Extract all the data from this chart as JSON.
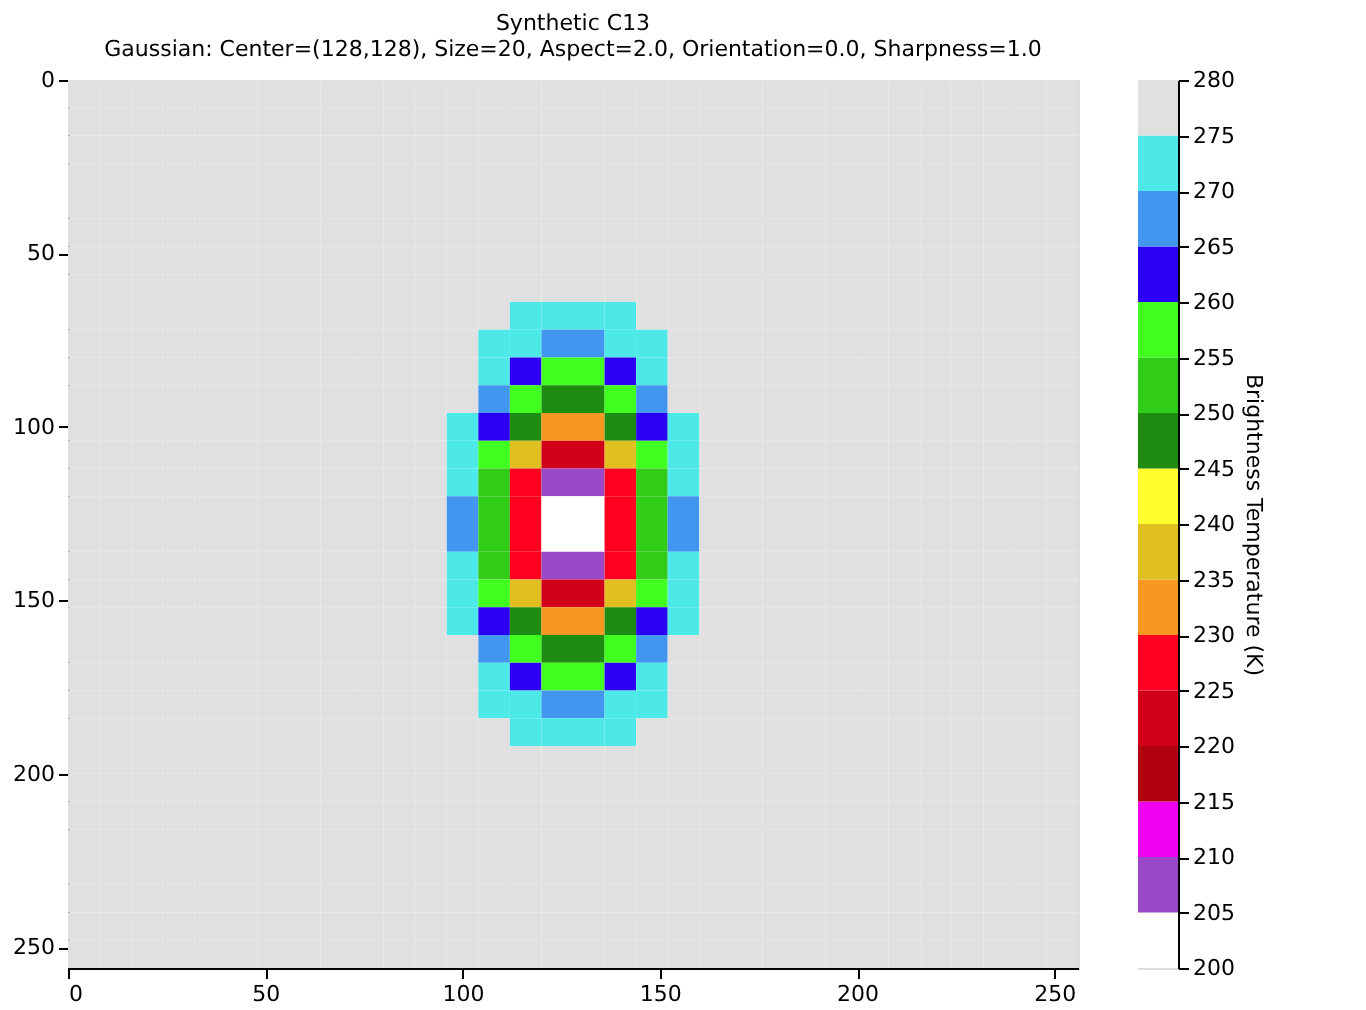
{
  "chart_data": {
    "type": "heatmap",
    "title": "Synthetic C13",
    "subtitle": "Gaussian: Center=(128,128), Size=20, Aspect=2.0, Orientation=0.0, Sharpness=1.0",
    "clabel": "Brightness Temperature (K)",
    "xlim": [
      0,
      256
    ],
    "ylim": [
      256,
      0
    ],
    "xticks": [
      0,
      50,
      100,
      150,
      200,
      250
    ],
    "yticks": [
      0,
      50,
      100,
      150,
      200,
      250
    ],
    "clim": [
      200,
      280
    ],
    "cticks": [
      200,
      205,
      210,
      215,
      220,
      225,
      230,
      235,
      240,
      245,
      250,
      255,
      260,
      265,
      270,
      275,
      280
    ],
    "colors": [
      "#ffffff",
      "#9848c8",
      "#f000f0",
      "#b00010",
      "#d00018",
      "#ff0020",
      "#f89820",
      "#e0c020",
      "#ffff30",
      "#1e8c10",
      "#30cc18",
      "#40ff20",
      "#2b00f5",
      "#4296f0",
      "#4de8e8",
      "#e0e0e0"
    ],
    "cells": [
      [
        278,
        278,
        278,
        278,
        278,
        278,
        278,
        278,
        278,
        278,
        278,
        278,
        278,
        278,
        278,
        278,
        278,
        278,
        278,
        278,
        278,
        278,
        278,
        278,
        278,
        278,
        278,
        278,
        278,
        278,
        278,
        278
      ],
      [
        278,
        278,
        278,
        278,
        278,
        278,
        278,
        278,
        278,
        278,
        278,
        278,
        278,
        278,
        278,
        278,
        278,
        278,
        278,
        278,
        278,
        278,
        278,
        278,
        278,
        278,
        278,
        278,
        278,
        278,
        278,
        278
      ],
      [
        278,
        278,
        278,
        278,
        278,
        278,
        278,
        278,
        278,
        278,
        278,
        278,
        278,
        278,
        278,
        278,
        278,
        278,
        278,
        278,
        278,
        278,
        278,
        278,
        278,
        278,
        278,
        278,
        278,
        278,
        278,
        278
      ],
      [
        278,
        278,
        278,
        278,
        278,
        278,
        278,
        278,
        278,
        278,
        278,
        278,
        278,
        278,
        278,
        278,
        278,
        278,
        278,
        278,
        278,
        278,
        278,
        278,
        278,
        278,
        278,
        278,
        278,
        278,
        278,
        278
      ],
      [
        278,
        278,
        278,
        278,
        278,
        278,
        278,
        278,
        278,
        278,
        278,
        278,
        278,
        278,
        278,
        278,
        278,
        278,
        278,
        278,
        278,
        278,
        278,
        278,
        278,
        278,
        278,
        278,
        278,
        278,
        278,
        278
      ],
      [
        278,
        278,
        278,
        278,
        278,
        278,
        278,
        278,
        278,
        278,
        278,
        278,
        278,
        278,
        278,
        278,
        278,
        278,
        278,
        278,
        278,
        278,
        278,
        278,
        278,
        278,
        278,
        278,
        278,
        278,
        278,
        278
      ],
      [
        278,
        278,
        278,
        278,
        278,
        278,
        278,
        278,
        278,
        278,
        278,
        278,
        278,
        278,
        278,
        278,
        278,
        278,
        278,
        278,
        278,
        278,
        278,
        278,
        278,
        278,
        278,
        278,
        278,
        278,
        278,
        278
      ],
      [
        278,
        278,
        278,
        278,
        278,
        278,
        278,
        278,
        278,
        278,
        278,
        278,
        278,
        278,
        278,
        278,
        278,
        278,
        278,
        278,
        278,
        278,
        278,
        278,
        278,
        278,
        278,
        278,
        278,
        278,
        278,
        278
      ],
      [
        278,
        278,
        278,
        278,
        278,
        278,
        278,
        278,
        278,
        278,
        278,
        278,
        278,
        278,
        273,
        273,
        273,
        273,
        278,
        278,
        278,
        278,
        278,
        278,
        278,
        278,
        278,
        278,
        278,
        278,
        278,
        278
      ],
      [
        278,
        278,
        278,
        278,
        278,
        278,
        278,
        278,
        278,
        278,
        278,
        278,
        278,
        273,
        273,
        268,
        268,
        273,
        273,
        278,
        278,
        278,
        278,
        278,
        278,
        278,
        278,
        278,
        278,
        278,
        278,
        278
      ],
      [
        278,
        278,
        278,
        278,
        278,
        278,
        278,
        278,
        278,
        278,
        278,
        278,
        278,
        273,
        263,
        258,
        258,
        263,
        273,
        278,
        278,
        278,
        278,
        278,
        278,
        278,
        278,
        278,
        278,
        278,
        278,
        278
      ],
      [
        278,
        278,
        278,
        278,
        278,
        278,
        278,
        278,
        278,
        278,
        278,
        278,
        278,
        268,
        258,
        248,
        248,
        258,
        268,
        278,
        278,
        278,
        278,
        278,
        278,
        278,
        278,
        278,
        278,
        278,
        278,
        278
      ],
      [
        278,
        278,
        278,
        278,
        278,
        278,
        278,
        278,
        278,
        278,
        278,
        278,
        273,
        263,
        248,
        233,
        233,
        248,
        263,
        273,
        278,
        278,
        278,
        278,
        278,
        278,
        278,
        278,
        278,
        278,
        278,
        278
      ],
      [
        278,
        278,
        278,
        278,
        278,
        278,
        278,
        278,
        278,
        278,
        278,
        278,
        273,
        258,
        238,
        223,
        223,
        238,
        258,
        273,
        278,
        278,
        278,
        278,
        278,
        278,
        278,
        278,
        278,
        278,
        278,
        278
      ],
      [
        278,
        278,
        278,
        278,
        278,
        278,
        278,
        278,
        278,
        278,
        278,
        278,
        273,
        253,
        228,
        208,
        208,
        228,
        253,
        273,
        278,
        278,
        278,
        278,
        278,
        278,
        278,
        278,
        278,
        278,
        278,
        278
      ],
      [
        278,
        278,
        278,
        278,
        278,
        278,
        278,
        278,
        278,
        278,
        278,
        278,
        268,
        253,
        228,
        203,
        203,
        228,
        253,
        268,
        278,
        278,
        278,
        278,
        278,
        278,
        278,
        278,
        278,
        278,
        278,
        278
      ],
      [
        278,
        278,
        278,
        278,
        278,
        278,
        278,
        278,
        278,
        278,
        278,
        278,
        268,
        253,
        228,
        203,
        203,
        228,
        253,
        268,
        278,
        278,
        278,
        278,
        278,
        278,
        278,
        278,
        278,
        278,
        278,
        278
      ],
      [
        278,
        278,
        278,
        278,
        278,
        278,
        278,
        278,
        278,
        278,
        278,
        278,
        273,
        253,
        228,
        208,
        208,
        228,
        253,
        273,
        278,
        278,
        278,
        278,
        278,
        278,
        278,
        278,
        278,
        278,
        278,
        278
      ],
      [
        278,
        278,
        278,
        278,
        278,
        278,
        278,
        278,
        278,
        278,
        278,
        278,
        273,
        258,
        238,
        223,
        223,
        238,
        258,
        273,
        278,
        278,
        278,
        278,
        278,
        278,
        278,
        278,
        278,
        278,
        278,
        278
      ],
      [
        278,
        278,
        278,
        278,
        278,
        278,
        278,
        278,
        278,
        278,
        278,
        278,
        273,
        263,
        248,
        233,
        233,
        248,
        263,
        273,
        278,
        278,
        278,
        278,
        278,
        278,
        278,
        278,
        278,
        278,
        278,
        278
      ],
      [
        278,
        278,
        278,
        278,
        278,
        278,
        278,
        278,
        278,
        278,
        278,
        278,
        278,
        268,
        258,
        248,
        248,
        258,
        268,
        278,
        278,
        278,
        278,
        278,
        278,
        278,
        278,
        278,
        278,
        278,
        278,
        278
      ],
      [
        278,
        278,
        278,
        278,
        278,
        278,
        278,
        278,
        278,
        278,
        278,
        278,
        278,
        273,
        263,
        258,
        258,
        263,
        273,
        278,
        278,
        278,
        278,
        278,
        278,
        278,
        278,
        278,
        278,
        278,
        278,
        278
      ],
      [
        278,
        278,
        278,
        278,
        278,
        278,
        278,
        278,
        278,
        278,
        278,
        278,
        278,
        273,
        273,
        268,
        268,
        273,
        273,
        278,
        278,
        278,
        278,
        278,
        278,
        278,
        278,
        278,
        278,
        278,
        278,
        278
      ],
      [
        278,
        278,
        278,
        278,
        278,
        278,
        278,
        278,
        278,
        278,
        278,
        278,
        278,
        278,
        273,
        273,
        273,
        273,
        278,
        278,
        278,
        278,
        278,
        278,
        278,
        278,
        278,
        278,
        278,
        278,
        278,
        278
      ],
      [
        278,
        278,
        278,
        278,
        278,
        278,
        278,
        278,
        278,
        278,
        278,
        278,
        278,
        278,
        278,
        278,
        278,
        278,
        278,
        278,
        278,
        278,
        278,
        278,
        278,
        278,
        278,
        278,
        278,
        278,
        278,
        278
      ],
      [
        278,
        278,
        278,
        278,
        278,
        278,
        278,
        278,
        278,
        278,
        278,
        278,
        278,
        278,
        278,
        278,
        278,
        278,
        278,
        278,
        278,
        278,
        278,
        278,
        278,
        278,
        278,
        278,
        278,
        278,
        278,
        278
      ],
      [
        278,
        278,
        278,
        278,
        278,
        278,
        278,
        278,
        278,
        278,
        278,
        278,
        278,
        278,
        278,
        278,
        278,
        278,
        278,
        278,
        278,
        278,
        278,
        278,
        278,
        278,
        278,
        278,
        278,
        278,
        278,
        278
      ],
      [
        278,
        278,
        278,
        278,
        278,
        278,
        278,
        278,
        278,
        278,
        278,
        278,
        278,
        278,
        278,
        278,
        278,
        278,
        278,
        278,
        278,
        278,
        278,
        278,
        278,
        278,
        278,
        278,
        278,
        278,
        278,
        278
      ],
      [
        278,
        278,
        278,
        278,
        278,
        278,
        278,
        278,
        278,
        278,
        278,
        278,
        278,
        278,
        278,
        278,
        278,
        278,
        278,
        278,
        278,
        278,
        278,
        278,
        278,
        278,
        278,
        278,
        278,
        278,
        278,
        278
      ],
      [
        278,
        278,
        278,
        278,
        278,
        278,
        278,
        278,
        278,
        278,
        278,
        278,
        278,
        278,
        278,
        278,
        278,
        278,
        278,
        278,
        278,
        278,
        278,
        278,
        278,
        278,
        278,
        278,
        278,
        278,
        278,
        278
      ],
      [
        278,
        278,
        278,
        278,
        278,
        278,
        278,
        278,
        278,
        278,
        278,
        278,
        278,
        278,
        278,
        278,
        278,
        278,
        278,
        278,
        278,
        278,
        278,
        278,
        278,
        278,
        278,
        278,
        278,
        278,
        278,
        278
      ],
      [
        278,
        278,
        278,
        278,
        278,
        278,
        278,
        278,
        278,
        278,
        278,
        278,
        278,
        278,
        278,
        278,
        278,
        278,
        278,
        278,
        278,
        278,
        278,
        278,
        278,
        278,
        278,
        278,
        278,
        278,
        278,
        278
      ]
    ]
  }
}
